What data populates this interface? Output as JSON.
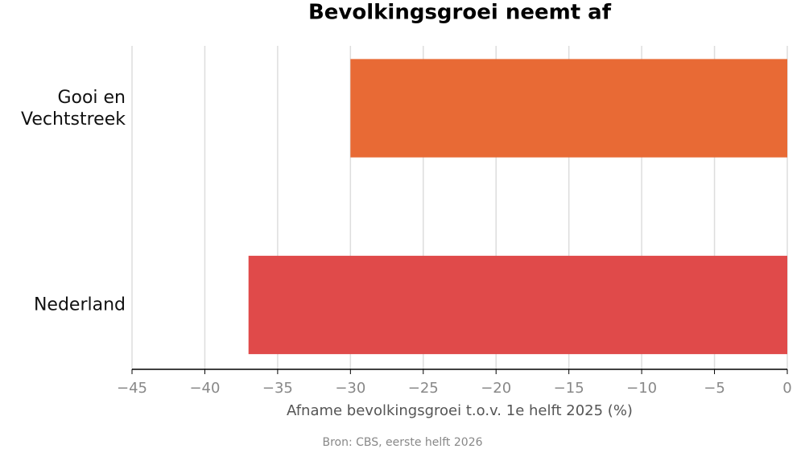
{
  "chart_data": {
    "type": "bar",
    "orientation": "horizontal",
    "title": "Bevolkingsgroei neemt af",
    "x_label": "Afname bevolkingsgroei t.o.v. 1e helft 2025 (%)",
    "source": "Bron: CBS, eerste helft 2026",
    "categories": [
      "Gooi en Vechtstreek",
      "Nederland"
    ],
    "values": [
      -30,
      -37
    ],
    "colors": [
      "#e86a35",
      "#e04a4a"
    ],
    "xlim": [
      -45,
      0
    ],
    "xticks": [
      {
        "value": -45,
        "label": "−45"
      },
      {
        "value": -40,
        "label": "−40"
      },
      {
        "value": -35,
        "label": "−35"
      },
      {
        "value": -30,
        "label": "−30"
      },
      {
        "value": -25,
        "label": "−25"
      },
      {
        "value": -20,
        "label": "−20"
      },
      {
        "value": -15,
        "label": "−15"
      },
      {
        "value": -10,
        "label": "−10"
      },
      {
        "value": -5,
        "label": "−5"
      },
      {
        "value": 0,
        "label": "0"
      }
    ],
    "grid": true
  }
}
